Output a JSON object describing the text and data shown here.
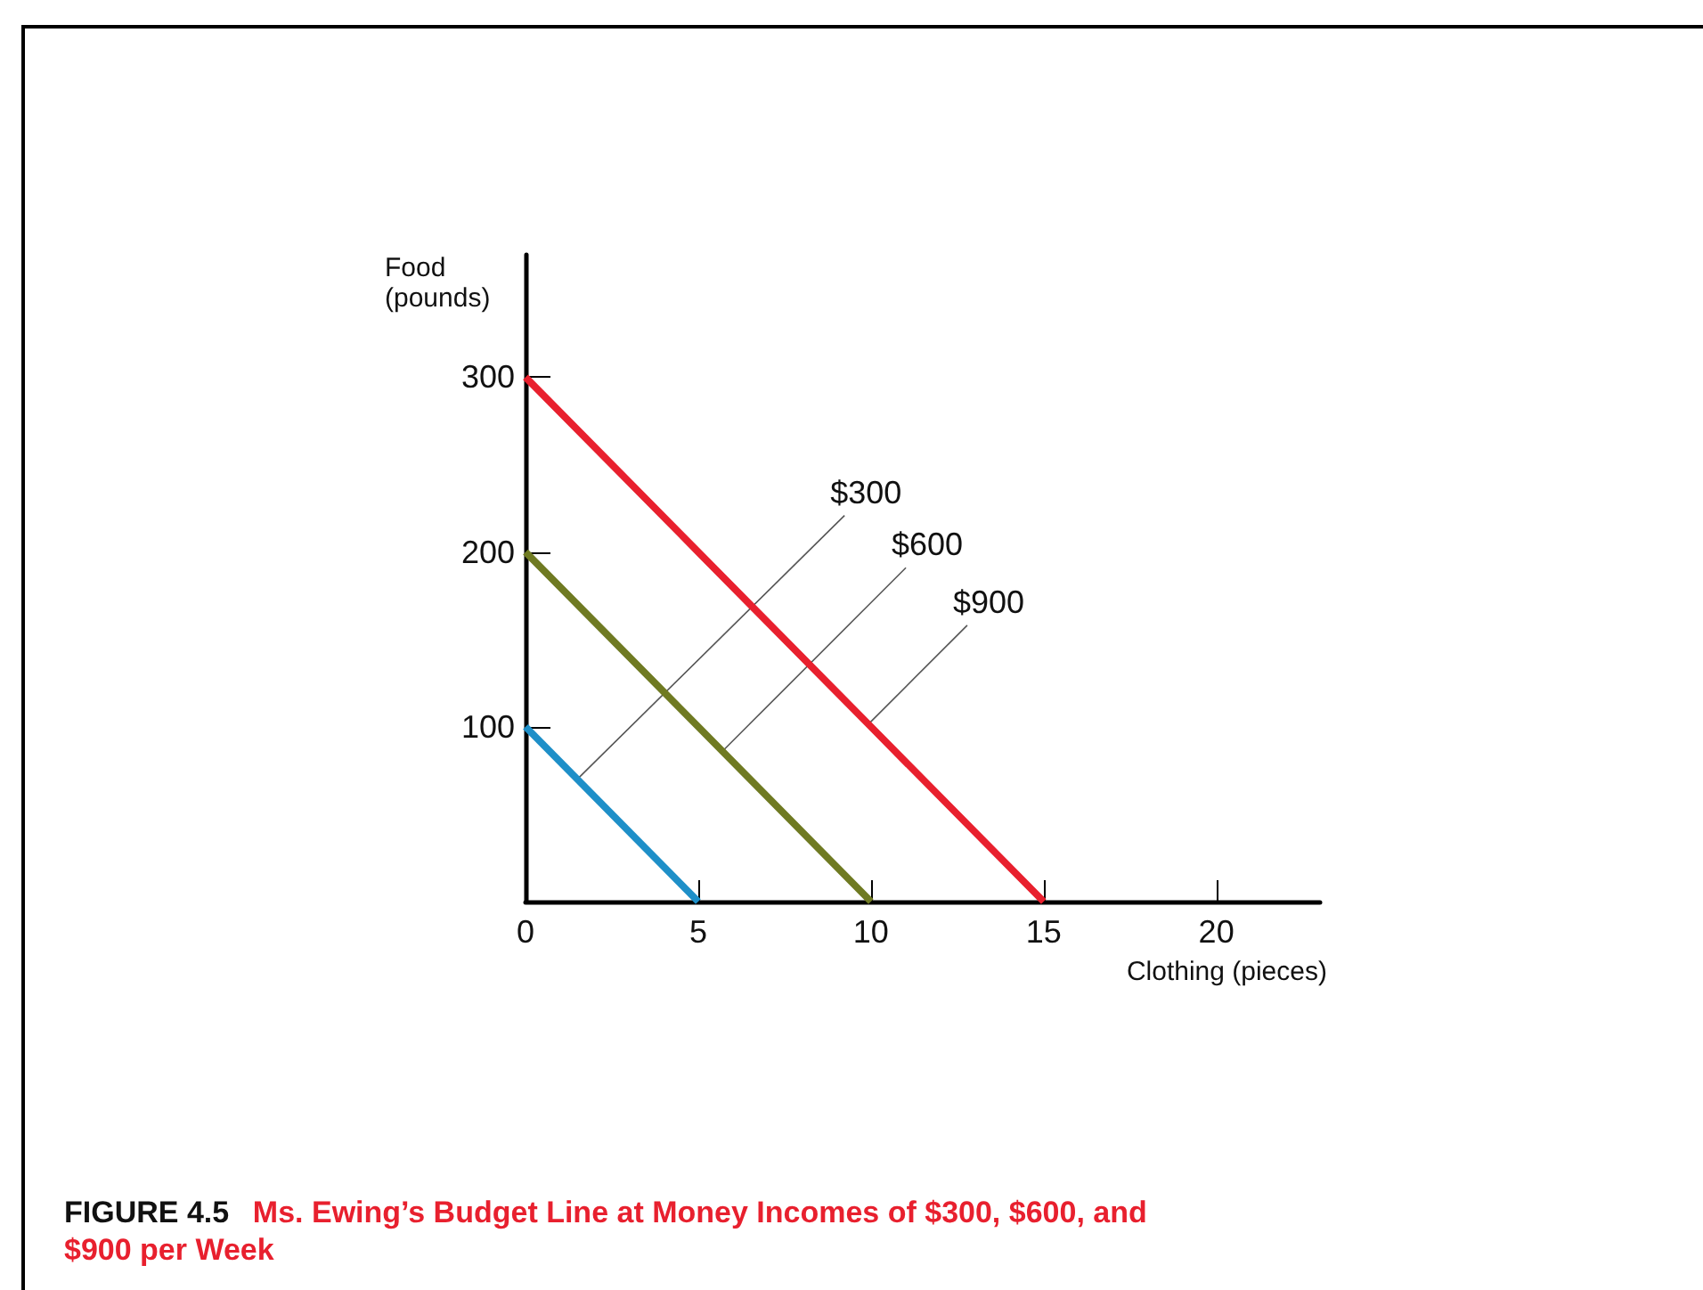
{
  "chart_data": {
    "type": "line",
    "title": "FIGURE 4.5",
    "subtitle": "Ms. Ewing’s Budget Line at Money Incomes of $300, $600, and $900 per Week",
    "xlabel": "Clothing (pieces)",
    "ylabel": "Food\n(pounds)",
    "x": [
      0,
      5,
      10,
      15
    ],
    "series": [
      {
        "color": "#1e8fc8",
        "values": [
          100,
          0,
          null,
          null
        ]
      },
      {
        "color": "#6f7a22",
        "values": [
          200,
          100,
          0,
          null
        ]
      },
      {
        "color": "#e8202e",
        "values": [
          300,
          200,
          100,
          0
        ]
      }
    ],
    "xlim": [
      0,
      23
    ],
    "ylim": [
      0,
      370
    ],
    "xticks": [
      0,
      5,
      10,
      15,
      20
    ],
    "yticks": [
      100,
      200,
      300
    ],
    "annotations": [
      {
        "text": "$300",
        "x": 1.5,
        "y": 70
      },
      {
        "text": "$600",
        "x": 5.7,
        "y": 86
      },
      {
        "text": "$900",
        "x": 9.9,
        "y": 101
      }
    ],
    "grid": false,
    "marker": "none",
    "line_style": "solid"
  }
}
